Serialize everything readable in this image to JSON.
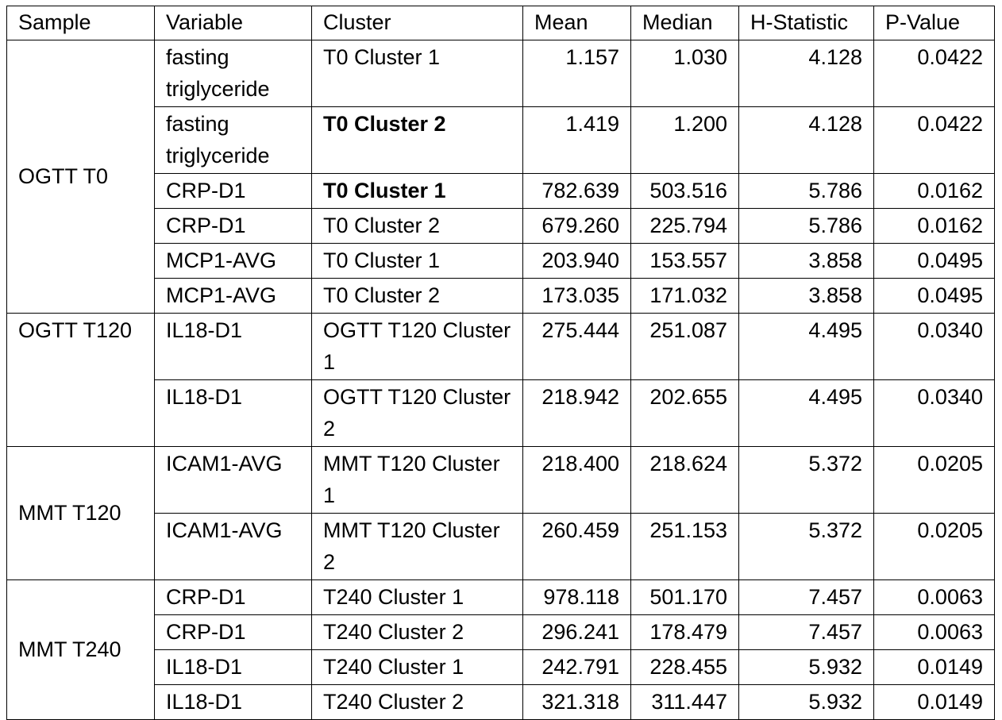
{
  "columns": [
    "Sample",
    "Variable",
    "Cluster",
    "Mean",
    "Median",
    "H-Statistic",
    "P-Value"
  ],
  "groups": [
    {
      "sample": "OGTT T0",
      "rows": [
        {
          "variable": "fasting triglyceride",
          "cluster": "T0 Cluster 1",
          "mean": "1.157",
          "median": "1.030",
          "h_statistic": "4.128",
          "p_value": "0.0422"
        },
        {
          "variable": "fasting triglyceride",
          "cluster": "T0 Cluster 2",
          "mean": "1.419",
          "median": "1.200",
          "h_statistic": "4.128",
          "p_value": "0.0422"
        },
        {
          "variable": "CRP-D1",
          "cluster": "T0 Cluster 1",
          "mean": "782.639",
          "median": "503.516",
          "h_statistic": "5.786",
          "p_value": "0.0162"
        },
        {
          "variable": "CRP-D1",
          "cluster": "T0 Cluster 2",
          "mean": "679.260",
          "median": "225.794",
          "h_statistic": "5.786",
          "p_value": "0.0162"
        },
        {
          "variable": "MCP1-AVG",
          "cluster": "T0 Cluster 1",
          "mean": "203.940",
          "median": "153.557",
          "h_statistic": "3.858",
          "p_value": "0.0495"
        },
        {
          "variable": "MCP1-AVG",
          "cluster": "T0 Cluster 2",
          "mean": "173.035",
          "median": "171.032",
          "h_statistic": "3.858",
          "p_value": "0.0495"
        }
      ]
    },
    {
      "sample": "OGTT T120",
      "rows": [
        {
          "variable": "IL18-D1",
          "cluster": "OGTT T120 Cluster 1",
          "mean": "275.444",
          "median": "251.087",
          "h_statistic": "4.495",
          "p_value": "0.0340"
        },
        {
          "variable": "IL18-D1",
          "cluster": "OGTT T120 Cluster 2",
          "mean": "218.942",
          "median": "202.655",
          "h_statistic": "4.495",
          "p_value": "0.0340"
        }
      ]
    },
    {
      "sample": "MMT T120",
      "rows": [
        {
          "variable": "ICAM1-AVG",
          "cluster": "MMT T120 Cluster 1",
          "mean": "218.400",
          "median": "218.624",
          "h_statistic": "5.372",
          "p_value": "0.0205"
        },
        {
          "variable": "ICAM1-AVG",
          "cluster": "MMT T120 Cluster 2",
          "mean": "260.459",
          "median": "251.153",
          "h_statistic": "5.372",
          "p_value": "0.0205"
        }
      ]
    },
    {
      "sample": "MMT T240",
      "rows": [
        {
          "variable": "CRP-D1",
          "cluster": "T240 Cluster 1",
          "mean": "978.118",
          "median": "501.170",
          "h_statistic": "7.457",
          "p_value": "0.0063"
        },
        {
          "variable": "CRP-D1",
          "cluster": "T240 Cluster 2",
          "mean": "296.241",
          "median": "178.479",
          "h_statistic": "7.457",
          "p_value": "0.0063"
        },
        {
          "variable": "IL18-D1",
          "cluster": "T240 Cluster 1",
          "mean": "242.791",
          "median": "228.455",
          "h_statistic": "5.932",
          "p_value": "0.0149"
        },
        {
          "variable": "IL18-D1",
          "cluster": "T240 Cluster 2",
          "mean": "321.318",
          "median": "311.447",
          "h_statistic": "5.932",
          "p_value": "0.0149"
        }
      ]
    }
  ]
}
